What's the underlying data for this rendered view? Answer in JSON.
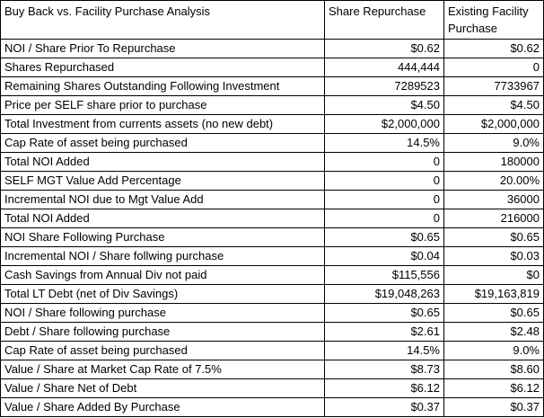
{
  "header": {
    "title": "Buy Back vs. Facility Purchase Analysis",
    "col_a": "Share Repurchase",
    "col_b": "Existing Facility Purchase"
  },
  "rows": [
    {
      "label": "NOI / Share Prior To Repurchase",
      "a": "$0.62",
      "b": "$0.62"
    },
    {
      "label": "Shares Repurchased",
      "a": "444,444",
      "b": "0"
    },
    {
      "label": "Remaining Shares Outstanding Following Investment",
      "a": "7289523",
      "b": "7733967"
    },
    {
      "label": "Price per SELF share prior to purchase",
      "a": "$4.50",
      "b": "$4.50"
    },
    {
      "label": "Total Investment from currents assets (no new debt)",
      "a": "$2,000,000",
      "b": "$2,000,000"
    },
    {
      "label": "Cap Rate of asset being purchased",
      "a": "14.5%",
      "b": "9.0%"
    },
    {
      "label": "Total NOI Added",
      "a": "0",
      "b": "180000"
    },
    {
      "label": "SELF MGT Value Add Percentage",
      "a": "0",
      "b": "20.00%"
    },
    {
      "label": "Incremental NOI due to Mgt Value Add",
      "a": "0",
      "b": "36000"
    },
    {
      "label": "Total NOI Added",
      "a": "0",
      "b": "216000"
    },
    {
      "label": "NOI  Share Following Purchase",
      "a": "$0.65",
      "b": "$0.65"
    },
    {
      "label": "Incremental NOI / Share follwing purchase",
      "a": "$0.04",
      "b": "$0.03"
    },
    {
      "label": "Cash Savings from Annual Div not paid",
      "a": "$115,556",
      "b": "$0"
    },
    {
      "label": "Total LT Debt (net of Div Savings)",
      "a": "$19,048,263",
      "b": "$19,163,819"
    },
    {
      "label": "NOI / Share following purchase",
      "a": "$0.65",
      "b": "$0.65"
    },
    {
      "label": "Debt / Share following purchase",
      "a": "$2.61",
      "b": "$2.48"
    },
    {
      "label": "Cap Rate of asset being purchased",
      "a": "14.5%",
      "b": "9.0%"
    },
    {
      "label": "Value / Share at Market Cap Rate of 7.5%",
      "a": "$8.73",
      "b": "$8.60"
    },
    {
      "label": "Value / Share Net of Debt",
      "a": "$6.12",
      "b": "$6.12"
    },
    {
      "label": "Value / Share Added By Purchase",
      "a": "$0.37",
      "b": "$0.37"
    }
  ]
}
